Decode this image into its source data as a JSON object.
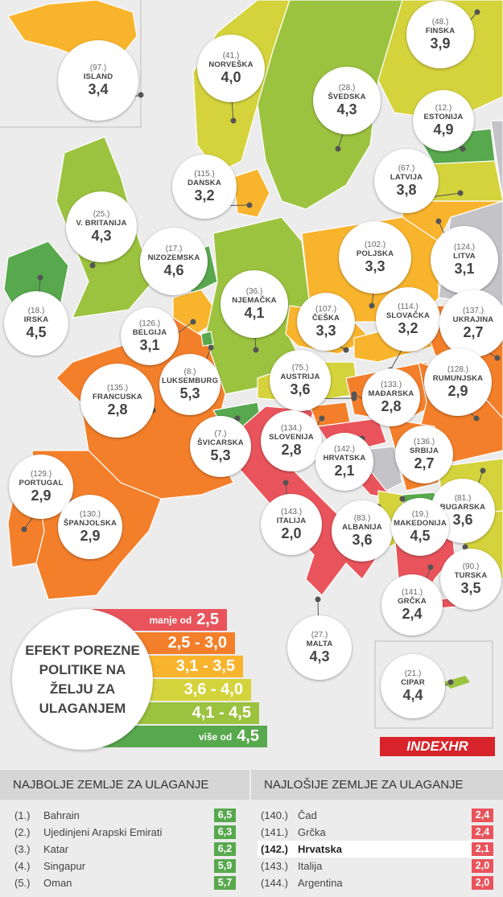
{
  "colors": {
    "lt25": "#e9545c",
    "r25_30": "#f47f2a",
    "r31_35": "#f9b42d",
    "r36_40": "#d5d33c",
    "r41_45": "#9cc33f",
    "gt45": "#58a84e",
    "nodata": "#c3c3c8",
    "sea": "#ececec"
  },
  "countries": [
    {
      "rank": "(97.)",
      "name": "ISLAND",
      "score": "3,4"
    },
    {
      "rank": "(41.)",
      "name": "NORVEŠKA",
      "score": "4,0"
    },
    {
      "rank": "(28.)",
      "name": "ŠVEDSKA",
      "score": "4,3"
    },
    {
      "rank": "(48.)",
      "name": "FINSKA",
      "score": "3,9"
    },
    {
      "rank": "(12.)",
      "name": "ESTONIJA",
      "score": "4,9"
    },
    {
      "rank": "(67.)",
      "name": "LATVIJA",
      "score": "3,8"
    },
    {
      "rank": "(115.)",
      "name": "DANSKA",
      "score": "3,2"
    },
    {
      "rank": "(25.)",
      "name": "V. BRITANIJA",
      "score": "4,3"
    },
    {
      "rank": "(17.)",
      "name": "NIZOZEMSKA",
      "score": "4,6"
    },
    {
      "rank": "(102.)",
      "name": "POLJSKA",
      "score": "3,3"
    },
    {
      "rank": "(124.)",
      "name": "LITVA",
      "score": "3,1"
    },
    {
      "rank": "(18.)",
      "name": "IRSKA",
      "score": "4,5"
    },
    {
      "rank": "(36.)",
      "name": "NJEMAČKA",
      "score": "4,1"
    },
    {
      "rank": "(126.)",
      "name": "BELGIJA",
      "score": "3,1"
    },
    {
      "rank": "(107.)",
      "name": "ČEŠKA",
      "score": "3,3"
    },
    {
      "rank": "(114.)",
      "name": "SLOVAČKA",
      "score": "3,2"
    },
    {
      "rank": "(137.)",
      "name": "UKRAJINA",
      "score": "2,7"
    },
    {
      "rank": "(8.)",
      "name": "LUKSEMBURG",
      "score": "5,3"
    },
    {
      "rank": "(75.)",
      "name": "AUSTRIJA",
      "score": "3,6"
    },
    {
      "rank": "(135.)",
      "name": "FRANCUSKA",
      "score": "2,8"
    },
    {
      "rank": "(128.)",
      "name": "RUMUNJSKA",
      "score": "2,9"
    },
    {
      "rank": "(133.)",
      "name": "MAĐARSKA",
      "score": "2,8"
    },
    {
      "rank": "(7.)",
      "name": "ŠVICARSKA",
      "score": "5,3"
    },
    {
      "rank": "(134.)",
      "name": "SLOVENIJA",
      "score": "2,8"
    },
    {
      "rank": "(142.)",
      "name": "HRVATSKA",
      "score": "2,1"
    },
    {
      "rank": "(136.)",
      "name": "SRBIJA",
      "score": "2,7"
    },
    {
      "rank": "(129.)",
      "name": "PORTUGAL",
      "score": "2,9"
    },
    {
      "rank": "(81.)",
      "name": "BUGARSKA",
      "score": "3,6"
    },
    {
      "rank": "(130.)",
      "name": "ŠPANJOLSKA",
      "score": "2,9"
    },
    {
      "rank": "(143.)",
      "name": "ITALIJA",
      "score": "2,0"
    },
    {
      "rank": "(83.)",
      "name": "ALBANIJA",
      "score": "3,6"
    },
    {
      "rank": "(19.)",
      "name": "MAKEDONIJA",
      "score": "4,5"
    },
    {
      "rank": "(90.)",
      "name": "TURSKA",
      "score": "3,5"
    },
    {
      "rank": "(141.)",
      "name": "GRČKA",
      "score": "2,4"
    },
    {
      "rank": "(27.)",
      "name": "MALTA",
      "score": "4,3"
    },
    {
      "rank": "(21.)",
      "name": "CIPAR",
      "score": "4,4"
    }
  ],
  "legend": {
    "title": "EFEKT POREZNE POLITIKE NA ŽELJU ZA ULAGANJEM",
    "items": [
      {
        "prefix": "manje od",
        "range": "2,5"
      },
      {
        "prefix": "",
        "range": "2,5 - 3,0"
      },
      {
        "prefix": "",
        "range": "3,1 - 3,5"
      },
      {
        "prefix": "",
        "range": "3,6 - 4,0"
      },
      {
        "prefix": "",
        "range": "4,1 - 4,5"
      },
      {
        "prefix": "više od",
        "range": "4,5"
      }
    ]
  },
  "logo": "INDEXHR",
  "best": {
    "title": "NAJBOLJE ZEMLJE ZA ULAGANJE",
    "rows": [
      {
        "rank": "(1.)",
        "name": "Bahrain",
        "score": "6,5"
      },
      {
        "rank": "(2.)",
        "name": "Ujedinjeni Arapski Emirati",
        "score": "6,3"
      },
      {
        "rank": "(3.)",
        "name": "Katar",
        "score": "6,2"
      },
      {
        "rank": "(4.)",
        "name": "Singapur",
        "score": "5,9"
      },
      {
        "rank": "(5.)",
        "name": "Oman",
        "score": "5,7"
      }
    ]
  },
  "worst": {
    "title": "NAJLOŠIJE ZEMLJE ZA ULAGANJE",
    "rows": [
      {
        "rank": "(140.)",
        "name": "Čad",
        "score": "2,4"
      },
      {
        "rank": "(141.)",
        "name": "Grčka",
        "score": "2,4"
      },
      {
        "rank": "(142.)",
        "name": "Hrvatska",
        "score": "2,1"
      },
      {
        "rank": "(143.)",
        "name": "Italija",
        "score": "2,0"
      },
      {
        "rank": "(144.)",
        "name": "Argentina",
        "score": "2,0"
      }
    ]
  }
}
